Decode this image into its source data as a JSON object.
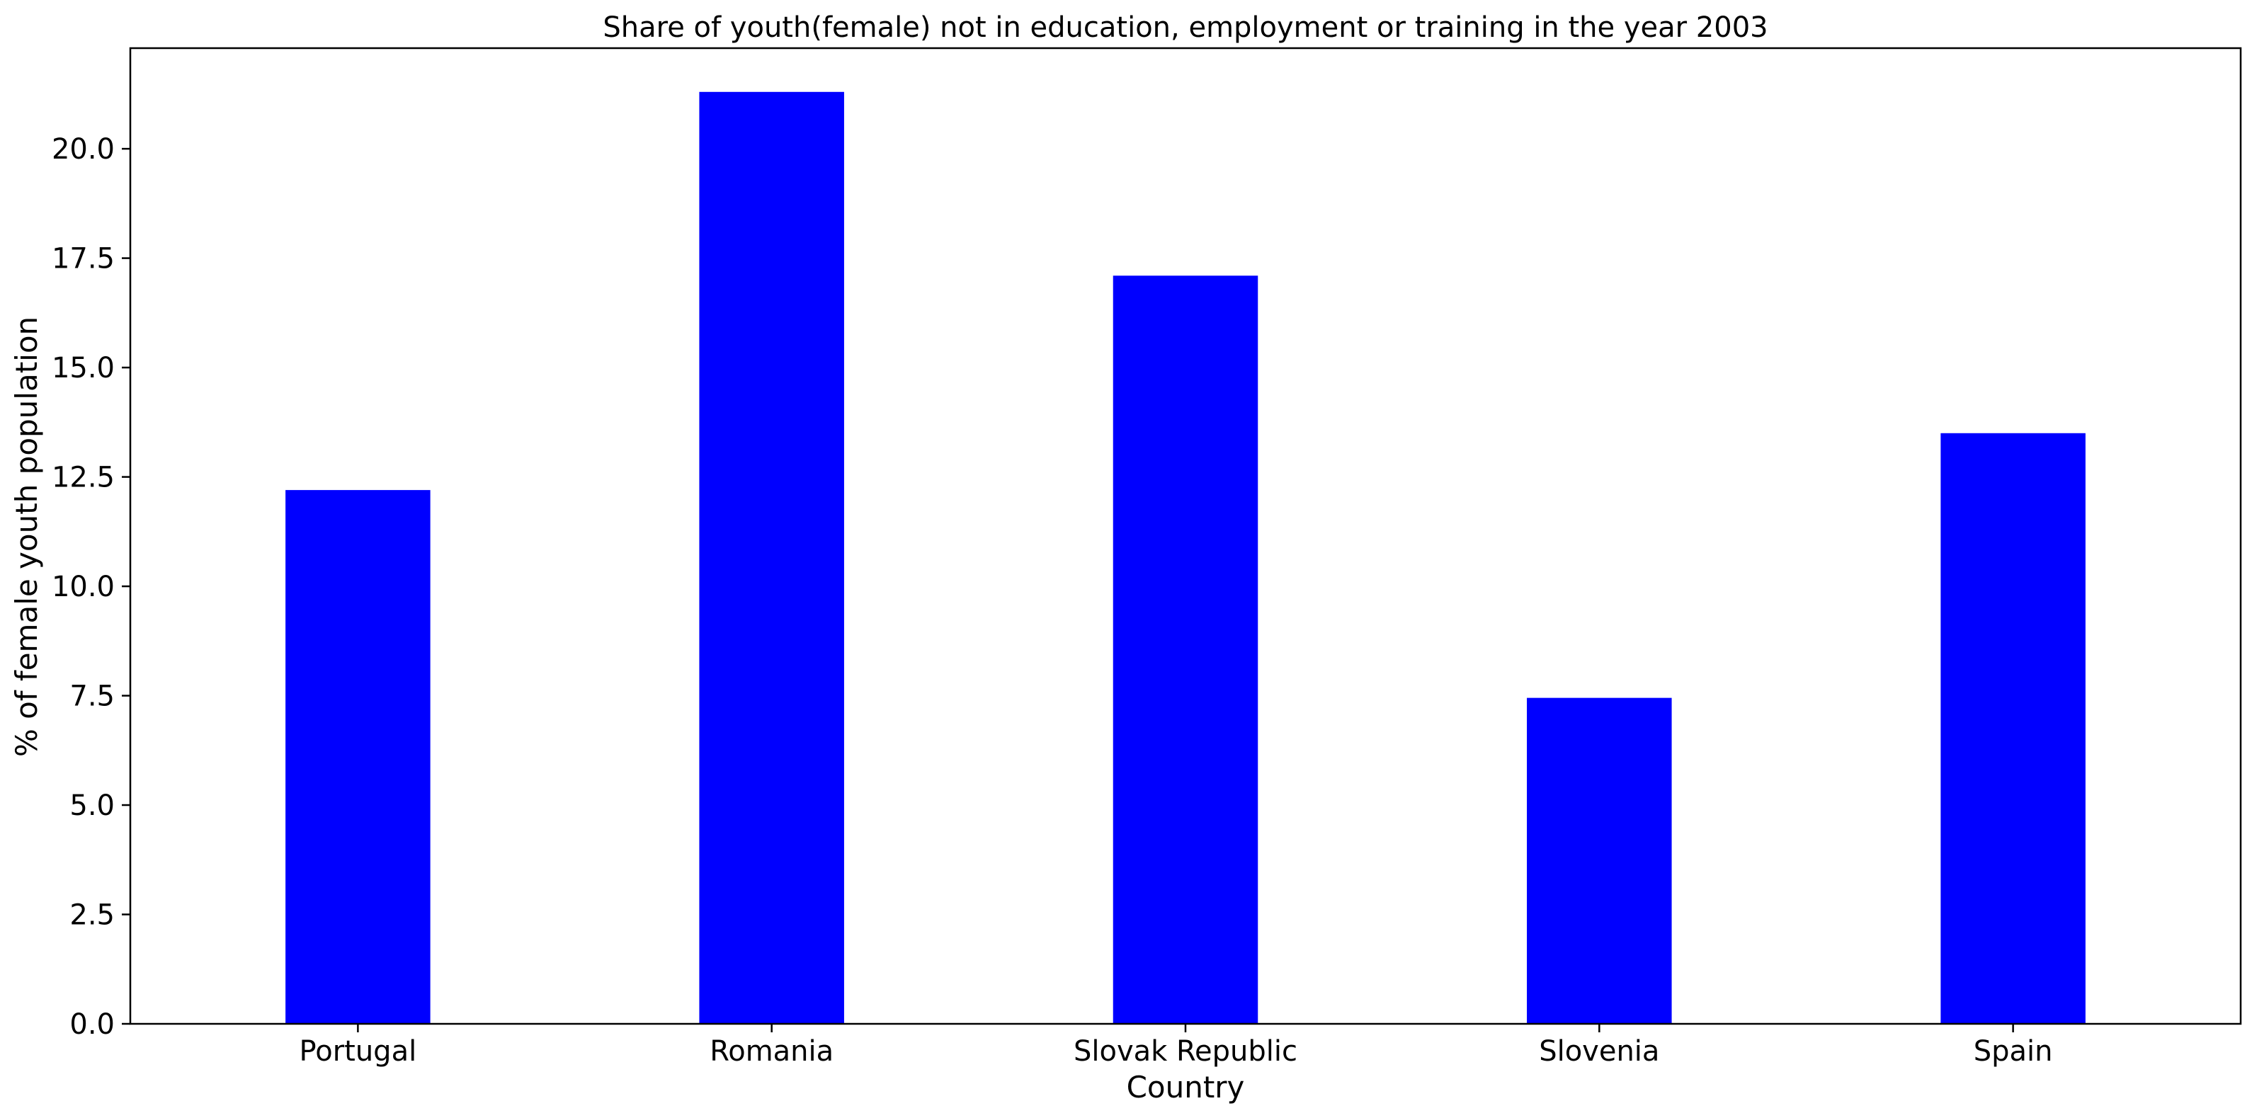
{
  "chart_data": {
    "type": "bar",
    "title": "Share of youth(female) not in education, employment or training in the year 2003",
    "xlabel": "Country",
    "ylabel": "% of female youth population",
    "categories": [
      "Portugal",
      "Romania",
      "Slovak Republic",
      "Slovenia",
      "Spain"
    ],
    "values": [
      12.2,
      21.3,
      17.1,
      7.45,
      13.5
    ],
    "ylim": [
      0,
      22.3
    ],
    "yticks": [
      "0.0",
      "2.5",
      "5.0",
      "7.5",
      "10.0",
      "12.5",
      "15.0",
      "17.5",
      "20.0"
    ],
    "bar_color": "#0000ff",
    "grid": false,
    "legend": "none"
  }
}
